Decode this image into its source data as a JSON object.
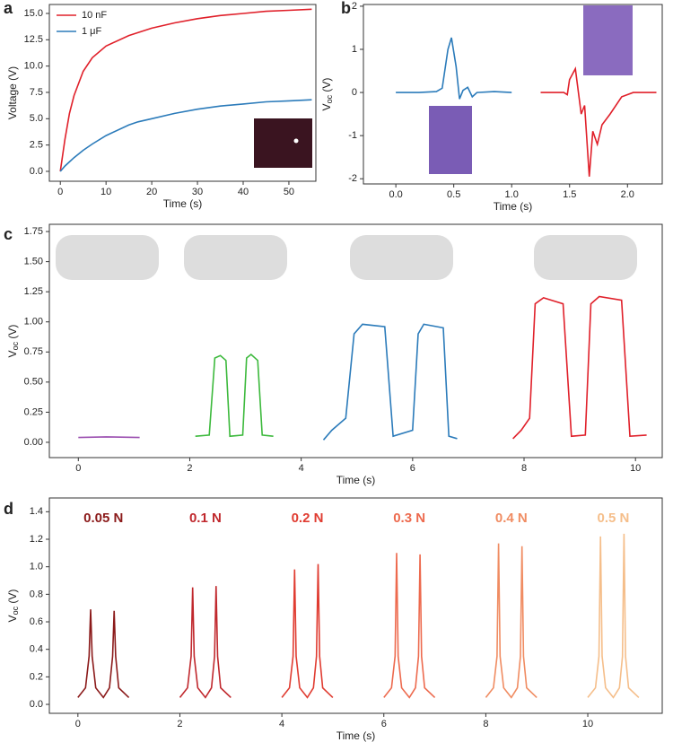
{
  "chart_data": [
    {
      "panel": "a",
      "type": "line",
      "xlabel": "Time (s)",
      "ylabel": "Voltage (V)",
      "xlim": [
        -2.4,
        55.9
      ],
      "ylim": [
        -0.94,
        15.85
      ],
      "xticks": [
        0,
        10,
        20,
        30,
        40,
        50
      ],
      "yticks": [
        {
          "value": 0,
          "label": "0.0"
        },
        2.5,
        {
          "value": 5,
          "label": "5.0"
        },
        7.5,
        {
          "value": 10,
          "label": "10.0"
        },
        12.5,
        {
          "value": 15,
          "label": "15.0"
        }
      ],
      "legend": "upper left",
      "series": [
        {
          "name": "10 nF",
          "color": "#e0202a",
          "x": [
            0,
            1,
            2,
            3,
            5,
            7,
            10,
            15,
            20,
            25,
            30,
            35,
            40,
            45,
            50,
            55
          ],
          "values": [
            0,
            3.0,
            5.5,
            7.2,
            9.5,
            10.8,
            11.9,
            12.9,
            13.6,
            14.1,
            14.5,
            14.8,
            15.0,
            15.2,
            15.3,
            15.4
          ]
        },
        {
          "name": "1 μF",
          "color": "#2b7bba",
          "x": [
            0,
            1,
            2,
            3,
            5,
            7,
            10,
            15,
            17,
            20,
            25,
            30,
            35,
            40,
            45,
            50,
            55
          ],
          "values": [
            0,
            0.5,
            0.9,
            1.3,
            2.0,
            2.6,
            3.4,
            4.4,
            4.7,
            5.0,
            5.5,
            5.9,
            6.2,
            6.4,
            6.6,
            6.7,
            6.8
          ]
        }
      ]
    },
    {
      "panel": "b",
      "type": "line",
      "xlabel": "Time (s)",
      "ylabel": [
        "V",
        "oc",
        " (V)"
      ],
      "xlim": [
        -0.28,
        2.3
      ],
      "ylim": [
        -2.12,
        2.04
      ],
      "xticks": [
        {
          "value": 0,
          "label": "0.0"
        },
        0.5,
        {
          "value": 1,
          "label": "1.0"
        },
        1.5,
        {
          "value": 2,
          "label": "2.0"
        }
      ],
      "yticks": [
        -2,
        -1,
        0,
        1,
        2
      ],
      "series": [
        {
          "color": "#2b7bba",
          "x": [
            0,
            0.2,
            0.35,
            0.4,
            0.45,
            0.48,
            0.52,
            0.55,
            0.58,
            0.62,
            0.66,
            0.7,
            0.85,
            1.0
          ],
          "values": [
            0,
            0,
            0.02,
            0.1,
            1.0,
            1.27,
            0.6,
            -0.15,
            0.05,
            0.12,
            -0.1,
            0,
            0.02,
            0
          ]
        },
        {
          "color": "#e0202a",
          "x": [
            1.25,
            1.45,
            1.48,
            1.5,
            1.55,
            1.6,
            1.63,
            1.67,
            1.7,
            1.74,
            1.78,
            1.85,
            1.95,
            2.05,
            2.25
          ],
          "values": [
            0,
            0,
            -0.05,
            0.3,
            0.55,
            -0.5,
            -0.3,
            -1.95,
            -0.9,
            -1.2,
            -0.75,
            -0.5,
            -0.1,
            0,
            0
          ]
        }
      ]
    },
    {
      "panel": "c",
      "type": "line",
      "xlabel": "Time (s)",
      "ylabel": [
        "V",
        "oc",
        " (V)"
      ],
      "xlim": [
        -0.52,
        10.48
      ],
      "ylim": [
        -0.127,
        1.81
      ],
      "xticks": [
        0,
        2,
        4,
        6,
        8,
        10
      ],
      "yticks": [
        {
          "value": 0,
          "label": "0.00"
        },
        0.25,
        {
          "value": 0.5,
          "label": "0.50"
        },
        0.75,
        {
          "value": 1,
          "label": "1.00"
        },
        1.25,
        {
          "value": 1.5,
          "label": "1.50"
        },
        1.75
      ],
      "series": [
        {
          "color": "#9b4fb0",
          "x": [
            0,
            0.5,
            1.1
          ],
          "values": [
            0.04,
            0.045,
            0.04
          ]
        },
        {
          "color": "#3cb93c",
          "x": [
            2.1,
            2.35,
            2.45,
            2.55,
            2.65,
            2.72,
            2.95,
            3.02,
            3.1,
            3.22,
            3.3,
            3.5
          ],
          "values": [
            0.05,
            0.06,
            0.7,
            0.72,
            0.68,
            0.05,
            0.06,
            0.7,
            0.73,
            0.68,
            0.06,
            0.05
          ]
        },
        {
          "color": "#2b7bba",
          "x": [
            4.4,
            4.55,
            4.8,
            4.95,
            5.1,
            5.5,
            5.65,
            6.0,
            6.1,
            6.2,
            6.55,
            6.65,
            6.8
          ],
          "values": [
            0.02,
            0.1,
            0.2,
            0.9,
            0.98,
            0.96,
            0.05,
            0.1,
            0.9,
            0.98,
            0.95,
            0.05,
            0.03
          ]
        },
        {
          "color": "#e0202a",
          "x": [
            7.8,
            7.95,
            8.1,
            8.2,
            8.35,
            8.7,
            8.85,
            9.1,
            9.2,
            9.35,
            9.75,
            9.9,
            10.2
          ],
          "values": [
            0.03,
            0.1,
            0.2,
            1.15,
            1.2,
            1.15,
            0.05,
            0.06,
            1.15,
            1.21,
            1.18,
            0.05,
            0.06
          ]
        }
      ]
    },
    {
      "panel": "d",
      "type": "line",
      "xlabel": "Time (s)",
      "ylabel": [
        "V",
        "oc",
        " (V)"
      ],
      "xlim": [
        -0.56,
        11.46
      ],
      "ylim": [
        -0.065,
        1.5
      ],
      "xticks": [
        0,
        2,
        4,
        6,
        8,
        10
      ],
      "yticks": [
        {
          "value": 0,
          "label": "0.0"
        },
        0.2,
        0.4,
        0.6,
        0.8,
        {
          "value": 1,
          "label": "1.0"
        },
        1.2,
        1.4
      ],
      "labels": [
        "0.05 N",
        "0.1 N",
        "0.2 N",
        "0.3 N",
        "0.4 N",
        "0.5 N"
      ],
      "series": [
        {
          "color": "#8b1a1a",
          "x": [
            0,
            0.15,
            0.22,
            0.25,
            0.28,
            0.35,
            0.5,
            0.62,
            0.68,
            0.71,
            0.74,
            0.8,
            1.0
          ],
          "values": [
            0.05,
            0.12,
            0.35,
            0.69,
            0.35,
            0.12,
            0.05,
            0.12,
            0.35,
            0.68,
            0.35,
            0.12,
            0.05
          ]
        },
        {
          "color": "#c0282d",
          "x": [
            2,
            2.15,
            2.22,
            2.25,
            2.28,
            2.35,
            2.5,
            2.62,
            2.68,
            2.71,
            2.74,
            2.8,
            3.0
          ],
          "values": [
            0.05,
            0.12,
            0.35,
            0.85,
            0.35,
            0.12,
            0.05,
            0.12,
            0.35,
            0.86,
            0.35,
            0.12,
            0.05
          ]
        },
        {
          "color": "#e03c31",
          "x": [
            4,
            4.15,
            4.22,
            4.25,
            4.28,
            4.35,
            4.5,
            4.62,
            4.68,
            4.71,
            4.74,
            4.8,
            5.0
          ],
          "values": [
            0.05,
            0.12,
            0.35,
            0.98,
            0.35,
            0.12,
            0.05,
            0.12,
            0.35,
            1.02,
            0.35,
            0.12,
            0.05
          ]
        },
        {
          "color": "#ed6a4e",
          "x": [
            6,
            6.15,
            6.22,
            6.25,
            6.28,
            6.35,
            6.5,
            6.62,
            6.68,
            6.71,
            6.74,
            6.8,
            7.0
          ],
          "values": [
            0.05,
            0.12,
            0.35,
            1.1,
            0.35,
            0.12,
            0.05,
            0.12,
            0.35,
            1.09,
            0.35,
            0.12,
            0.05
          ]
        },
        {
          "color": "#f08c62",
          "x": [
            8,
            8.15,
            8.22,
            8.25,
            8.28,
            8.35,
            8.5,
            8.62,
            8.68,
            8.71,
            8.74,
            8.8,
            9.0
          ],
          "values": [
            0.05,
            0.12,
            0.35,
            1.17,
            0.35,
            0.12,
            0.05,
            0.12,
            0.35,
            1.15,
            0.35,
            0.12,
            0.05
          ]
        },
        {
          "color": "#f5be8a",
          "x": [
            10,
            10.15,
            10.22,
            10.25,
            10.28,
            10.35,
            10.5,
            10.62,
            10.68,
            10.71,
            10.74,
            10.8,
            11.0
          ],
          "values": [
            0.05,
            0.12,
            0.35,
            1.22,
            0.35,
            0.12,
            0.05,
            0.12,
            0.35,
            1.24,
            0.35,
            0.12,
            0.05
          ]
        }
      ]
    }
  ]
}
